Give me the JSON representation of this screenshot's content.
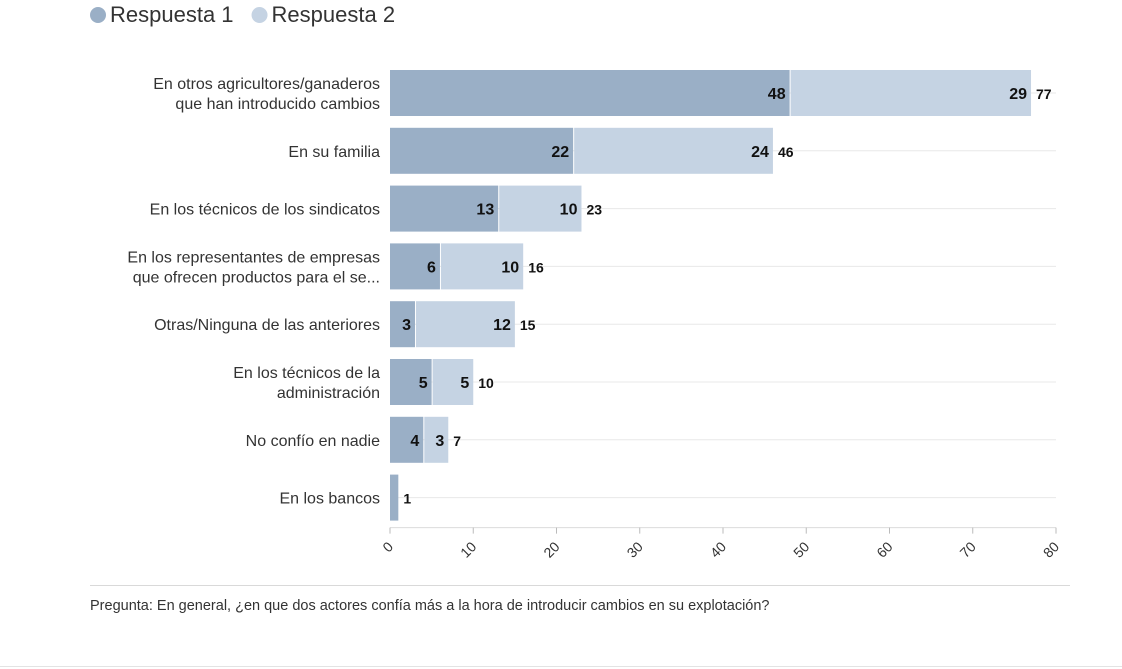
{
  "chart_data": {
    "type": "bar",
    "orientation": "horizontal",
    "stacked": true,
    "categories": [
      [
        "En otros agricultores/ganaderos",
        "que han introducido cambios"
      ],
      [
        "En su familia"
      ],
      [
        "En los técnicos de los sindicatos"
      ],
      [
        "En los representantes de empresas",
        "que ofrecen productos para el se..."
      ],
      [
        "Otras/Ninguna de las anteriores"
      ],
      [
        "En los técnicos de la",
        "administración"
      ],
      [
        "No confío en nadie"
      ],
      [
        "En los bancos"
      ]
    ],
    "series": [
      {
        "name": "Respuesta 1",
        "color": "#9aafc6",
        "values": [
          48,
          22,
          13,
          6,
          3,
          5,
          4,
          1
        ]
      },
      {
        "name": "Respuesta 2",
        "color": "#c5d3e3",
        "values": [
          29,
          24,
          10,
          10,
          12,
          5,
          3,
          0
        ]
      }
    ],
    "totals": [
      77,
      46,
      23,
      16,
      15,
      10,
      7,
      1
    ],
    "xlim": [
      0,
      80
    ],
    "xticks": [
      0,
      10,
      20,
      30,
      40,
      50,
      60,
      70,
      80
    ],
    "grid": true,
    "legend_position": "top-left"
  },
  "footnote": "Pregunta: En general, ¿en que dos actores confía más a la hora de introducir cambios en su explotación?"
}
